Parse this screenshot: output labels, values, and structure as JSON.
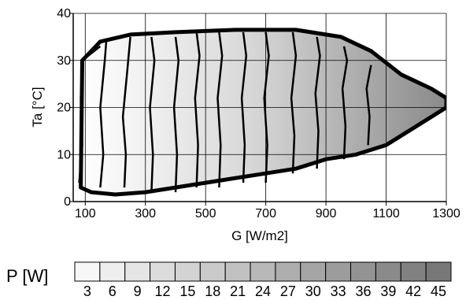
{
  "chart_data": {
    "type": "contour",
    "xlabel": "G [W/m2]",
    "ylabel": "Ta [°C]",
    "xlim": [
      60,
      1300
    ],
    "ylim": [
      0,
      40
    ],
    "x_ticks": [
      100,
      300,
      500,
      700,
      900,
      1100,
      1300
    ],
    "y_ticks": [
      0,
      10,
      20,
      30,
      40
    ],
    "grid": true,
    "colorbar": {
      "title": "P [W]",
      "levels": [
        3,
        6,
        9,
        12,
        15,
        18,
        21,
        24,
        27,
        30,
        33,
        36,
        39,
        42,
        45
      ],
      "labels": [
        "3",
        "6",
        "9",
        "12",
        "15",
        "18",
        "21",
        "24",
        "27",
        "30",
        "33",
        "36",
        "39",
        "42",
        "45"
      ],
      "gray_light": "#f7f7f7",
      "gray_dark": "#787878"
    },
    "contour_lines": [
      {
        "level": 3,
        "points": [
          [
            80,
            4
          ],
          [
            90,
            12
          ],
          [
            85,
            22
          ],
          [
            90,
            30
          ],
          [
            150,
            33
          ]
        ]
      },
      {
        "level": 6,
        "points": [
          [
            150,
            3
          ],
          [
            160,
            10
          ],
          [
            150,
            20
          ],
          [
            165,
            30
          ],
          [
            170,
            34
          ]
        ]
      },
      {
        "level": 9,
        "points": [
          [
            230,
            3
          ],
          [
            235,
            10
          ],
          [
            225,
            18
          ],
          [
            240,
            28
          ],
          [
            250,
            35
          ]
        ]
      },
      {
        "level": 12,
        "points": [
          [
            320,
            2
          ],
          [
            325,
            10
          ],
          [
            315,
            20
          ],
          [
            330,
            30
          ],
          [
            320,
            35
          ]
        ]
      },
      {
        "level": 15,
        "points": [
          [
            400,
            2
          ],
          [
            405,
            10
          ],
          [
            395,
            20
          ],
          [
            410,
            30
          ],
          [
            400,
            35
          ]
        ]
      },
      {
        "level": 18,
        "points": [
          [
            470,
            3
          ],
          [
            475,
            12
          ],
          [
            465,
            22
          ],
          [
            480,
            31
          ],
          [
            470,
            36
          ]
        ]
      },
      {
        "level": 21,
        "points": [
          [
            545,
            3
          ],
          [
            550,
            12
          ],
          [
            540,
            22
          ],
          [
            555,
            31
          ],
          [
            545,
            36
          ]
        ]
      },
      {
        "level": 24,
        "points": [
          [
            625,
            4
          ],
          [
            630,
            12
          ],
          [
            620,
            22
          ],
          [
            635,
            31
          ],
          [
            625,
            36
          ]
        ]
      },
      {
        "level": 27,
        "points": [
          [
            700,
            4
          ],
          [
            705,
            12
          ],
          [
            695,
            22
          ],
          [
            710,
            31
          ],
          [
            700,
            36
          ]
        ]
      },
      {
        "level": 30,
        "points": [
          [
            790,
            6
          ],
          [
            795,
            14
          ],
          [
            785,
            22
          ],
          [
            800,
            31
          ],
          [
            790,
            36
          ]
        ]
      },
      {
        "level": 33,
        "points": [
          [
            870,
            7
          ],
          [
            875,
            15
          ],
          [
            865,
            23
          ],
          [
            880,
            31
          ],
          [
            870,
            35
          ]
        ]
      },
      {
        "level": 36,
        "points": [
          [
            960,
            9
          ],
          [
            965,
            16
          ],
          [
            955,
            24
          ],
          [
            970,
            30
          ],
          [
            960,
            33
          ]
        ]
      },
      {
        "level": 39,
        "points": [
          [
            1040,
            12
          ],
          [
            1045,
            18
          ],
          [
            1035,
            24
          ],
          [
            1050,
            29
          ]
        ]
      }
    ],
    "region": {
      "upper": [
        [
          90,
          30
        ],
        [
          150,
          34
        ],
        [
          250,
          35.5
        ],
        [
          400,
          36
        ],
        [
          600,
          36.5
        ],
        [
          800,
          36.5
        ],
        [
          950,
          35
        ],
        [
          1050,
          32
        ],
        [
          1150,
          27
        ],
        [
          1250,
          24
        ],
        [
          1300,
          22
        ]
      ],
      "lower": [
        [
          1300,
          20
        ],
        [
          1200,
          16
        ],
        [
          1100,
          12
        ],
        [
          1000,
          10
        ],
        [
          900,
          9
        ],
        [
          800,
          7
        ],
        [
          700,
          6
        ],
        [
          600,
          5
        ],
        [
          500,
          4
        ],
        [
          400,
          3
        ],
        [
          300,
          2
        ],
        [
          200,
          1.5
        ],
        [
          120,
          2
        ],
        [
          85,
          3
        ]
      ]
    }
  }
}
